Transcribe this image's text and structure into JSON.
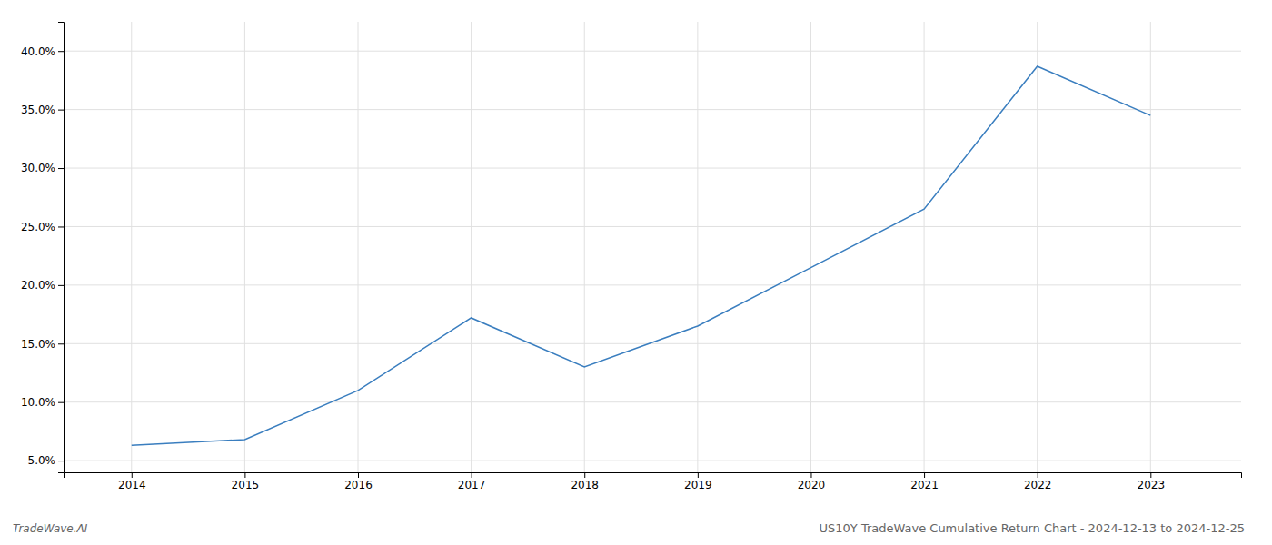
{
  "chart_data": {
    "type": "line",
    "title": "US10Y TradeWave Cumulative Return Chart - 2024-12-13 to 2024-12-25",
    "annotations": [
      "TradeWave.AI"
    ],
    "x": [
      2014,
      2015,
      2016,
      2017,
      2018,
      2019,
      2020,
      2021,
      2022,
      2023
    ],
    "values": [
      0.063,
      0.068,
      0.11,
      0.172,
      0.13,
      0.165,
      0.215,
      0.265,
      0.387,
      0.345
    ],
    "color": "#3a7ebf",
    "xlim": [
      2013.4,
      2023.8
    ],
    "xticks": [
      2014,
      2015,
      2016,
      2017,
      2018,
      2019,
      2020,
      2021,
      2022,
      2023
    ],
    "ylim": [
      0.04,
      0.425
    ],
    "yticks": [
      {
        "value": 0.05,
        "label": "5.0%"
      },
      {
        "value": 0.1,
        "label": "10.0%"
      },
      {
        "value": 0.15,
        "label": "15.0%"
      },
      {
        "value": 0.2,
        "label": "20.0%"
      },
      {
        "value": 0.25,
        "label": "25.0%"
      },
      {
        "value": 0.3,
        "label": "30.0%"
      },
      {
        "value": 0.35,
        "label": "35.0%"
      },
      {
        "value": 0.4,
        "label": "40.0%"
      }
    ],
    "grid": true
  }
}
